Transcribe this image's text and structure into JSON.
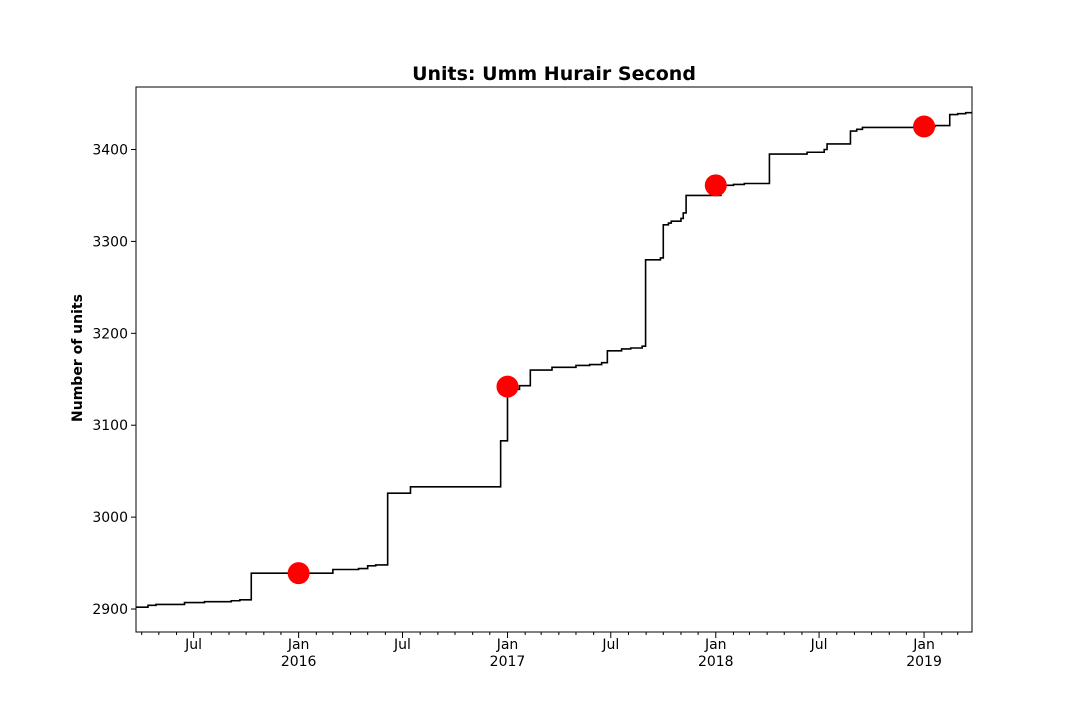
{
  "chart_data": {
    "type": "line",
    "title": "Units: Umm Hurair Second",
    "xlabel": "",
    "ylabel": "Number of units",
    "xlim": [
      "2015-03-22",
      "2019-03-26"
    ],
    "ylim": [
      2875,
      3468
    ],
    "y_ticks": [
      2900,
      3000,
      3100,
      3200,
      3300,
      3400
    ],
    "x_major_ticks": [
      {
        "date": "2015-07-01",
        "label": "Jul",
        "year": ""
      },
      {
        "date": "2016-01-01",
        "label": "Jan",
        "year": "2016"
      },
      {
        "date": "2016-07-01",
        "label": "Jul",
        "year": ""
      },
      {
        "date": "2017-01-01",
        "label": "Jan",
        "year": "2017"
      },
      {
        "date": "2017-07-01",
        "label": "Jul",
        "year": ""
      },
      {
        "date": "2018-01-01",
        "label": "Jan",
        "year": "2018"
      },
      {
        "date": "2018-07-01",
        "label": "Jul",
        "year": ""
      },
      {
        "date": "2019-01-01",
        "label": "Jan",
        "year": "2019"
      }
    ],
    "x_minor_ticks": [
      "2015-04-01",
      "2015-05-01",
      "2015-06-01",
      "2015-08-01",
      "2015-09-01",
      "2015-10-01",
      "2015-11-01",
      "2015-12-01",
      "2016-02-01",
      "2016-03-01",
      "2016-04-01",
      "2016-05-01",
      "2016-06-01",
      "2016-08-01",
      "2016-09-01",
      "2016-10-01",
      "2016-11-01",
      "2016-12-01",
      "2017-02-01",
      "2017-03-01",
      "2017-04-01",
      "2017-05-01",
      "2017-06-01",
      "2017-08-01",
      "2017-09-01",
      "2017-10-01",
      "2017-11-01",
      "2017-12-01",
      "2018-02-01",
      "2018-03-01",
      "2018-04-01",
      "2018-05-01",
      "2018-06-01",
      "2018-08-01",
      "2018-09-01",
      "2018-10-01",
      "2018-11-01",
      "2018-12-01",
      "2019-02-01",
      "2019-03-01"
    ],
    "series": [
      {
        "style": "step",
        "color": "#000000",
        "points": [
          [
            "2015-03-22",
            2902
          ],
          [
            "2015-04-12",
            2904
          ],
          [
            "2015-04-26",
            2905
          ],
          [
            "2015-06-15",
            2907
          ],
          [
            "2015-07-20",
            2908
          ],
          [
            "2015-09-05",
            2909
          ],
          [
            "2015-09-20",
            2910
          ],
          [
            "2015-10-10",
            2939
          ],
          [
            "2016-02-15",
            2939
          ],
          [
            "2016-03-01",
            2943
          ],
          [
            "2016-04-15",
            2944
          ],
          [
            "2016-05-01",
            2947
          ],
          [
            "2016-05-15",
            2948
          ],
          [
            "2016-06-05",
            3026
          ],
          [
            "2016-07-15",
            3033
          ],
          [
            "2016-12-20",
            3083
          ],
          [
            "2017-01-01",
            3139
          ],
          [
            "2017-01-22",
            3143
          ],
          [
            "2017-02-10",
            3160
          ],
          [
            "2017-03-20",
            3163
          ],
          [
            "2017-05-01",
            3165
          ],
          [
            "2017-05-25",
            3166
          ],
          [
            "2017-06-15",
            3168
          ],
          [
            "2017-06-25",
            3181
          ],
          [
            "2017-07-20",
            3183
          ],
          [
            "2017-08-05",
            3184
          ],
          [
            "2017-08-25",
            3186
          ],
          [
            "2017-08-31",
            3280
          ],
          [
            "2017-09-26",
            3282
          ],
          [
            "2017-10-01",
            3318
          ],
          [
            "2017-10-10",
            3320
          ],
          [
            "2017-10-15",
            3322
          ],
          [
            "2017-11-01",
            3325
          ],
          [
            "2017-11-05",
            3331
          ],
          [
            "2017-11-10",
            3350
          ],
          [
            "2018-01-10",
            3361
          ],
          [
            "2018-02-01",
            3362
          ],
          [
            "2018-02-20",
            3363
          ],
          [
            "2018-04-05",
            3395
          ],
          [
            "2018-06-10",
            3397
          ],
          [
            "2018-07-10",
            3400
          ],
          [
            "2018-07-15",
            3406
          ],
          [
            "2018-08-25",
            3420
          ],
          [
            "2018-09-05",
            3422
          ],
          [
            "2018-09-15",
            3424
          ],
          [
            "2018-12-25",
            3425
          ],
          [
            "2019-01-20",
            3426
          ],
          [
            "2019-02-15",
            3438
          ],
          [
            "2019-03-01",
            3439
          ],
          [
            "2019-03-15",
            3440
          ],
          [
            "2019-03-26",
            3440
          ]
        ]
      },
      {
        "style": "markers",
        "color": "#ff0000",
        "points": [
          [
            "2016-01-01",
            2939
          ],
          [
            "2017-01-01",
            3142
          ],
          [
            "2018-01-01",
            3361
          ],
          [
            "2019-01-01",
            3425
          ]
        ]
      }
    ]
  }
}
